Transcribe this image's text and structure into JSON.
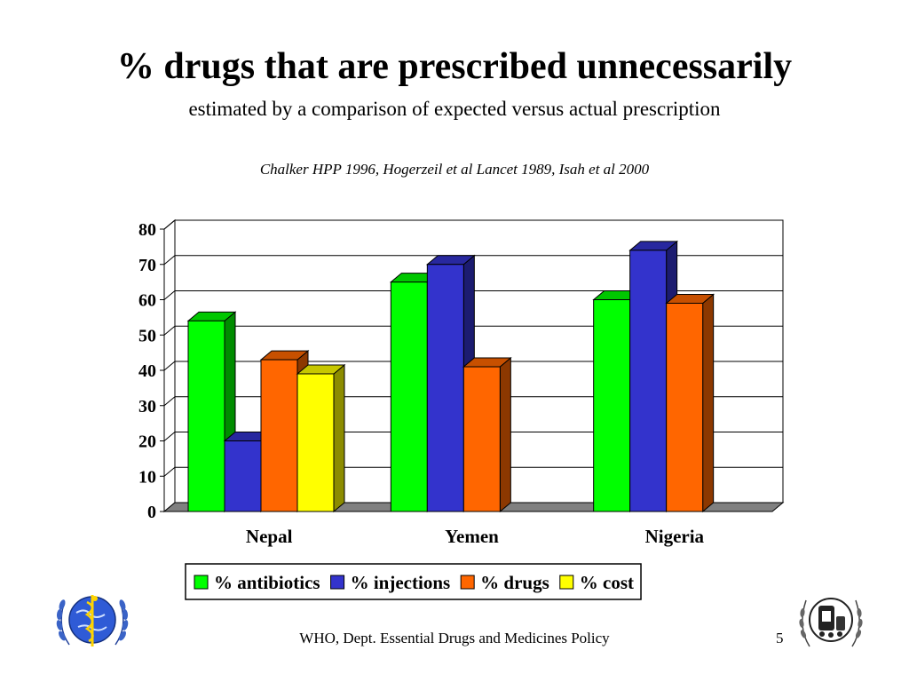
{
  "slide": {
    "title": "% drugs that are prescribed unnecessarily",
    "subtitle": "estimated by a comparison of expected versus actual prescription",
    "citation": "Chalker HPP 1996, Hogerzeil et al Lancet 1989, Isah et al 2000",
    "footer": "WHO, Dept. Essential Drugs and Medicines Policy",
    "page_number": "5"
  },
  "logos": {
    "left": "who-emblem",
    "right": "essential-drugs-emblem"
  },
  "chart_data": {
    "type": "bar",
    "categories": [
      "Nepal",
      "Yemen",
      "Nigeria"
    ],
    "series": [
      {
        "name": "% antibiotics",
        "color": "#00ff00",
        "values": [
          54,
          65,
          60
        ]
      },
      {
        "name": "% injections",
        "color": "#3333cc",
        "values": [
          20,
          70,
          74
        ]
      },
      {
        "name": "% drugs",
        "color": "#ff6600",
        "values": [
          43,
          41,
          59
        ]
      },
      {
        "name": "% cost",
        "color": "#ffff00",
        "values": [
          39,
          null,
          null
        ]
      }
    ],
    "ylim": [
      0,
      80
    ],
    "yticks": [
      0,
      10,
      20,
      30,
      40,
      50,
      60,
      70,
      80
    ],
    "grid": true,
    "legend": "bottom",
    "three_d": true
  }
}
